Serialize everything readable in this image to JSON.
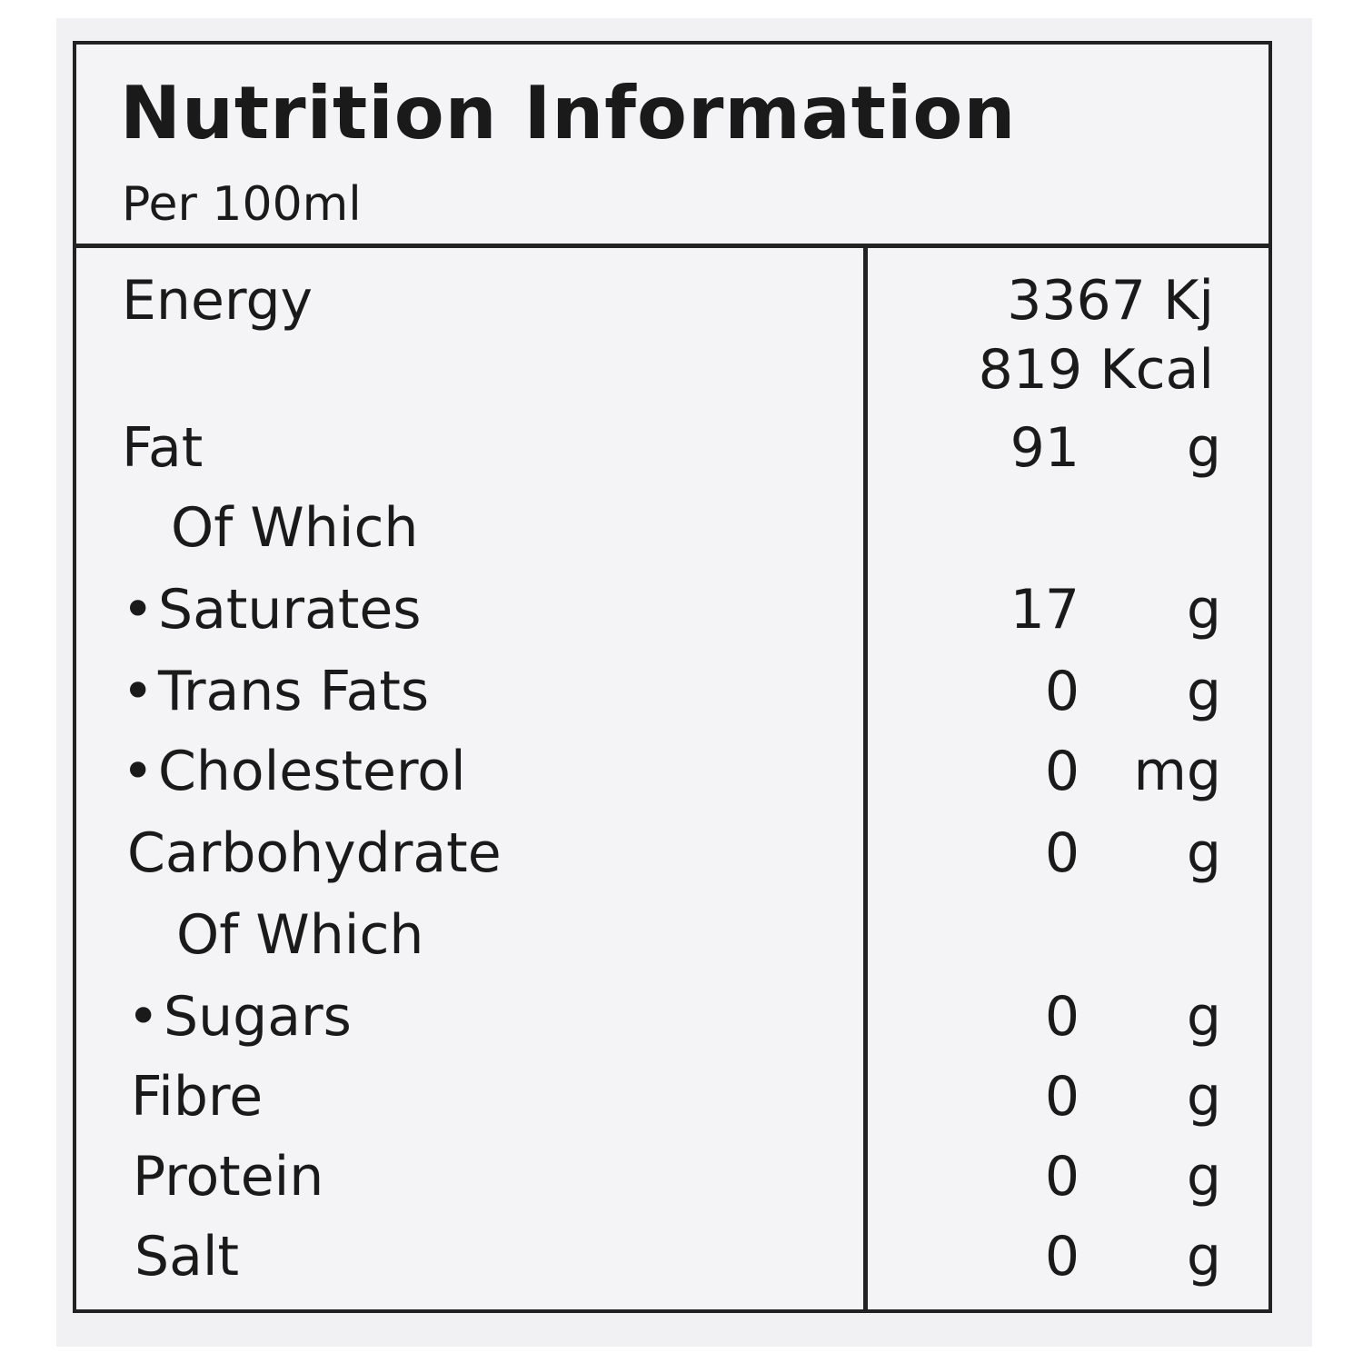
{
  "label": {
    "title": "Nutrition Information",
    "basis": "Per 100ml",
    "energy": {
      "name": "Energy",
      "kj": "3367 Kj",
      "kcal": "819 Kcal"
    },
    "rows": [
      {
        "name": "Fat",
        "amount": "91",
        "unit": "g"
      },
      {
        "name": "Of Which"
      },
      {
        "bullet": "•",
        "name": "Saturates",
        "amount": "17",
        "unit": "g"
      },
      {
        "bullet": "•",
        "name": "Trans Fats",
        "amount": "0",
        "unit": "g"
      },
      {
        "bullet": "•",
        "name": "Cholesterol",
        "amount": "0",
        "unit": "mg"
      },
      {
        "name": "Carbohydrate",
        "amount": "0",
        "unit": "g"
      },
      {
        "name": "Of Which"
      },
      {
        "bullet": "•",
        "name": "Sugars",
        "amount": "0",
        "unit": "g"
      },
      {
        "name": "Fibre",
        "amount": "0",
        "unit": "g"
      },
      {
        "name": "Protein",
        "amount": "0",
        "unit": "g"
      },
      {
        "name": "Salt",
        "amount": "0",
        "unit": "g"
      }
    ]
  }
}
